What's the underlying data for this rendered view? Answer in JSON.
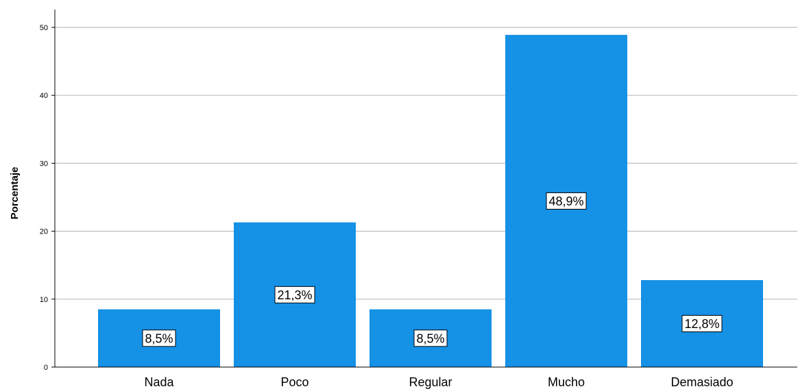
{
  "chart_data": {
    "type": "bar",
    "categories": [
      "Nada",
      "Poco",
      "Regular",
      "Mucho",
      "Demasiado"
    ],
    "values": [
      8.5,
      21.3,
      8.5,
      48.9,
      12.8
    ],
    "data_labels": [
      "8,5%",
      "21,3%",
      "8,5%",
      "48,9%",
      "12,8%"
    ],
    "ylabel": "Porcentaje",
    "xlabel": "",
    "ylim": [
      0,
      50
    ],
    "yticks": [
      0,
      10,
      20,
      30,
      40,
      50
    ],
    "grid": true,
    "bar_color": "#1591e6",
    "grid_color": "#bdbdbd"
  }
}
